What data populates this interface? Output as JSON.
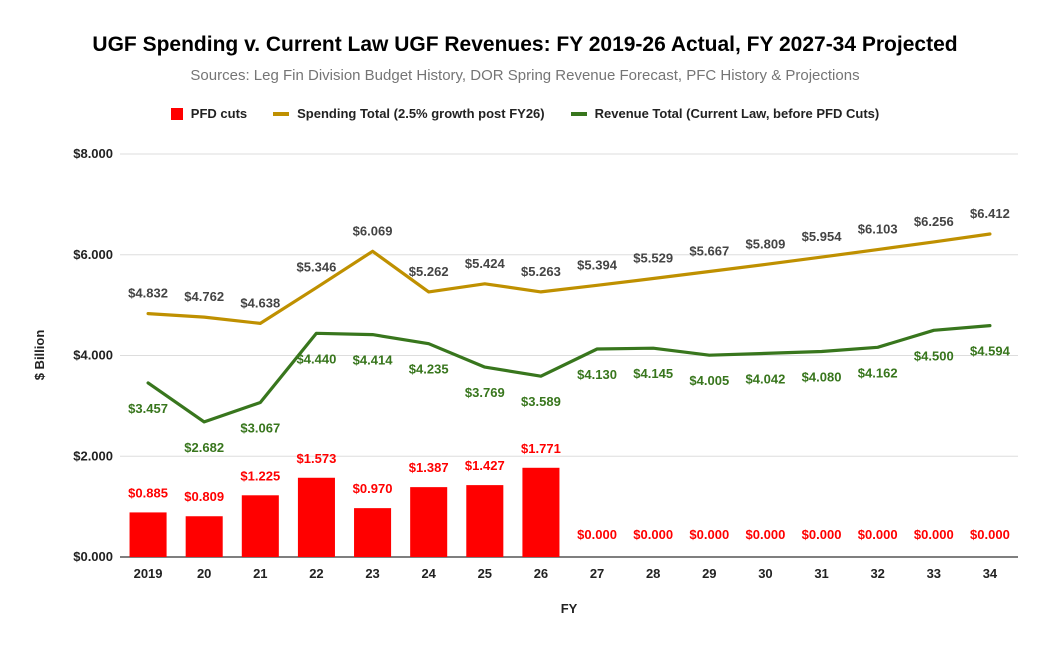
{
  "chart_data": {
    "type": "bar",
    "title": "UGF Spending v. Current Law UGF Revenues: FY 2019-26 Actual, FY 2027-34 Projected",
    "subtitle": "Sources: Leg Fin Division Budget History, DOR Spring Revenue Forecast, PFC History & Projections",
    "xlabel": "FY",
    "ylabel": "$ Billion",
    "ylim": [
      0,
      8
    ],
    "yticks": [
      "$0.000",
      "$2.000",
      "$4.000",
      "$6.000",
      "$8.000"
    ],
    "grid": true,
    "legend_position": "top",
    "categories": [
      "2019",
      "20",
      "21",
      "22",
      "23",
      "24",
      "25",
      "26",
      "27",
      "28",
      "29",
      "30",
      "31",
      "32",
      "33",
      "34"
    ],
    "series": [
      {
        "name": "PFD cuts",
        "kind": "bar",
        "color": "#ff0000",
        "values": [
          0.885,
          0.809,
          1.225,
          1.573,
          0.97,
          1.387,
          1.427,
          1.771,
          0,
          0,
          0,
          0,
          0,
          0,
          0,
          0
        ],
        "labels": [
          "$0.885",
          "$0.809",
          "$1.225",
          "$1.573",
          "$0.970",
          "$1.387",
          "$1.427",
          "$1.771",
          "$0.000",
          "$0.000",
          "$0.000",
          "$0.000",
          "$0.000",
          "$0.000",
          "$0.000",
          "$0.000"
        ]
      },
      {
        "name": "Spending Total (2.5% growth post FY26)",
        "kind": "line",
        "color": "#bf9000",
        "values": [
          4.832,
          4.762,
          4.638,
          5.346,
          6.069,
          5.262,
          5.424,
          5.263,
          5.394,
          5.529,
          5.667,
          5.809,
          5.954,
          6.103,
          6.256,
          6.412
        ],
        "labels": [
          "$4.832",
          "$4.762",
          "$4.638",
          "$5.346",
          "$6.069",
          "$5.262",
          "$5.424",
          "$5.263",
          "$5.394",
          "$5.529",
          "$5.667",
          "$5.809",
          "$5.954",
          "$6.103",
          "$6.256",
          "$6.412"
        ],
        "label_color": "#444444"
      },
      {
        "name": "Revenue Total (Current Law, before PFD Cuts)",
        "kind": "line",
        "color": "#38761d",
        "values": [
          3.457,
          2.682,
          3.067,
          4.44,
          4.414,
          4.235,
          3.769,
          3.589,
          4.13,
          4.145,
          4.005,
          4.042,
          4.08,
          4.162,
          4.5,
          4.594
        ],
        "labels": [
          "$3.457",
          "$2.682",
          "$3.067",
          "$4.440",
          "$4.414",
          "$4.235",
          "$3.769",
          "$3.589",
          "$4.130",
          "$4.145",
          "$4.005",
          "$4.042",
          "$4.080",
          "$4.162",
          "$4.500",
          "$4.594"
        ],
        "label_color": "#38761d"
      }
    ]
  }
}
